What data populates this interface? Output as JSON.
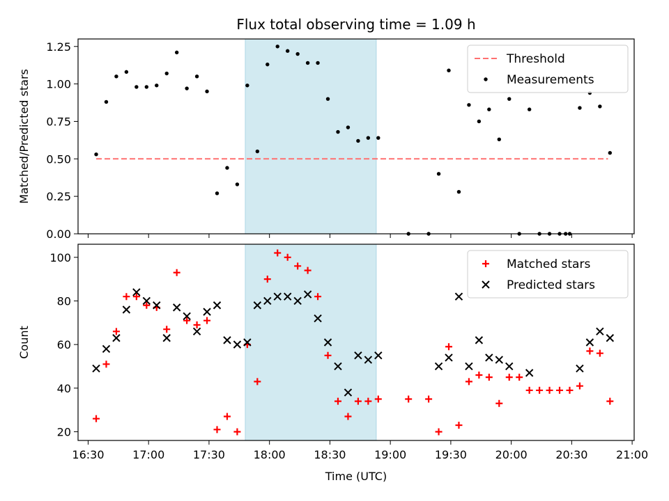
{
  "chart_data": {
    "title": "Flux total observing time = 1.09 h",
    "x_axis": {
      "label": "Time (UTC)",
      "range": [
        "16:25",
        "21:01"
      ],
      "ticks": [
        "16:30",
        "17:00",
        "17:30",
        "18:00",
        "18:30",
        "19:00",
        "19:30",
        "20:00",
        "20:30",
        "21:00"
      ]
    },
    "shaded_span": {
      "from": "17:48",
      "to": "18:53",
      "color": "#add8e6"
    },
    "panels": [
      {
        "type": "scatter",
        "ylabel": "Matched/Predicted stars",
        "ylim": [
          0,
          1.3
        ],
        "yticks": [
          "0.00",
          "0.25",
          "0.50",
          "0.75",
          "1.00",
          "1.25"
        ],
        "legend": "top-right",
        "series": [
          {
            "name": "Threshold",
            "style": "dashed-line",
            "color": "#ff7070",
            "points": [
              [
                "16:34",
                0.5
              ],
              [
                "20:48",
                0.5
              ]
            ]
          },
          {
            "name": "Measurements",
            "style": "dot",
            "color": "#000000",
            "points": [
              [
                "16:34",
                0.53
              ],
              [
                "16:39",
                0.88
              ],
              [
                "16:44",
                1.05
              ],
              [
                "16:49",
                1.08
              ],
              [
                "16:54",
                0.98
              ],
              [
                "16:59",
                0.98
              ],
              [
                "17:04",
                0.99
              ],
              [
                "17:09",
                1.07
              ],
              [
                "17:14",
                1.21
              ],
              [
                "17:19",
                0.97
              ],
              [
                "17:24",
                1.05
              ],
              [
                "17:29",
                0.95
              ],
              [
                "17:34",
                0.27
              ],
              [
                "17:39",
                0.44
              ],
              [
                "17:44",
                0.33
              ],
              [
                "17:49",
                0.99
              ],
              [
                "17:54",
                0.55
              ],
              [
                "17:59",
                1.13
              ],
              [
                "18:04",
                1.25
              ],
              [
                "18:09",
                1.22
              ],
              [
                "18:14",
                1.2
              ],
              [
                "18:19",
                1.14
              ],
              [
                "18:24",
                1.14
              ],
              [
                "18:29",
                0.9
              ],
              [
                "18:34",
                0.68
              ],
              [
                "18:39",
                0.71
              ],
              [
                "18:44",
                0.62
              ],
              [
                "18:49",
                0.64
              ],
              [
                "18:54",
                0.64
              ],
              [
                "19:09",
                0.0
              ],
              [
                "19:19",
                0.0
              ],
              [
                "19:24",
                0.4
              ],
              [
                "19:29",
                1.09
              ],
              [
                "19:34",
                0.28
              ],
              [
                "19:39",
                0.86
              ],
              [
                "19:44",
                0.75
              ],
              [
                "19:49",
                0.83
              ],
              [
                "19:54",
                0.63
              ],
              [
                "19:59",
                0.9
              ],
              [
                "20:04",
                0.0
              ],
              [
                "20:09",
                0.83
              ],
              [
                "20:14",
                0.0
              ],
              [
                "20:19",
                0.0
              ],
              [
                "20:24",
                0.0
              ],
              [
                "20:27",
                0.0
              ],
              [
                "20:29",
                0.0
              ],
              [
                "20:34",
                0.84
              ],
              [
                "20:39",
                0.94
              ],
              [
                "20:44",
                0.85
              ],
              [
                "20:49",
                0.54
              ]
            ]
          }
        ]
      },
      {
        "type": "scatter",
        "ylabel": "Count",
        "ylim": [
          16,
          106
        ],
        "yticks": [
          "20",
          "40",
          "60",
          "80",
          "100"
        ],
        "legend": "top-right",
        "series": [
          {
            "name": "Matched stars",
            "style": "plus",
            "color": "#ff0000",
            "points": [
              [
                "16:34",
                26
              ],
              [
                "16:39",
                51
              ],
              [
                "16:44",
                66
              ],
              [
                "16:49",
                82
              ],
              [
                "16:54",
                82
              ],
              [
                "16:59",
                78
              ],
              [
                "17:04",
                77
              ],
              [
                "17:09",
                67
              ],
              [
                "17:14",
                93
              ],
              [
                "17:19",
                71
              ],
              [
                "17:24",
                69
              ],
              [
                "17:29",
                71
              ],
              [
                "17:34",
                21
              ],
              [
                "17:39",
                27
              ],
              [
                "17:44",
                20
              ],
              [
                "17:49",
                60
              ],
              [
                "17:54",
                43
              ],
              [
                "17:59",
                90
              ],
              [
                "18:04",
                102
              ],
              [
                "18:09",
                100
              ],
              [
                "18:14",
                96
              ],
              [
                "18:19",
                94
              ],
              [
                "18:24",
                82
              ],
              [
                "18:29",
                55
              ],
              [
                "18:34",
                34
              ],
              [
                "18:39",
                27
              ],
              [
                "18:44",
                34
              ],
              [
                "18:49",
                34
              ],
              [
                "18:54",
                35
              ],
              [
                "19:09",
                35
              ],
              [
                "19:19",
                35
              ],
              [
                "19:24",
                20
              ],
              [
                "19:29",
                59
              ],
              [
                "19:34",
                23
              ],
              [
                "19:39",
                43
              ],
              [
                "19:44",
                46
              ],
              [
                "19:49",
                45
              ],
              [
                "19:54",
                33
              ],
              [
                "19:59",
                45
              ],
              [
                "20:04",
                45
              ],
              [
                "20:09",
                39
              ],
              [
                "20:14",
                39
              ],
              [
                "20:19",
                39
              ],
              [
                "20:24",
                39
              ],
              [
                "20:29",
                39
              ],
              [
                "20:34",
                41
              ],
              [
                "20:39",
                57
              ],
              [
                "20:44",
                56
              ],
              [
                "20:49",
                34
              ]
            ]
          },
          {
            "name": "Predicted stars",
            "style": "x",
            "color": "#000000",
            "points": [
              [
                "16:34",
                49
              ],
              [
                "16:39",
                58
              ],
              [
                "16:44",
                63
              ],
              [
                "16:49",
                76
              ],
              [
                "16:54",
                84
              ],
              [
                "16:59",
                80
              ],
              [
                "17:04",
                78
              ],
              [
                "17:09",
                63
              ],
              [
                "17:14",
                77
              ],
              [
                "17:19",
                73
              ],
              [
                "17:24",
                66
              ],
              [
                "17:29",
                75
              ],
              [
                "17:34",
                78
              ],
              [
                "17:39",
                62
              ],
              [
                "17:44",
                60
              ],
              [
                "17:49",
                61
              ],
              [
                "17:54",
                78
              ],
              [
                "17:59",
                80
              ],
              [
                "18:04",
                82
              ],
              [
                "18:09",
                82
              ],
              [
                "18:14",
                80
              ],
              [
                "18:19",
                83
              ],
              [
                "18:24",
                72
              ],
              [
                "18:29",
                61
              ],
              [
                "18:34",
                50
              ],
              [
                "18:39",
                38
              ],
              [
                "18:44",
                55
              ],
              [
                "18:49",
                53
              ],
              [
                "18:54",
                55
              ],
              [
                "19:24",
                50
              ],
              [
                "19:29",
                54
              ],
              [
                "19:34",
                82
              ],
              [
                "19:39",
                50
              ],
              [
                "19:44",
                62
              ],
              [
                "19:49",
                54
              ],
              [
                "19:54",
                53
              ],
              [
                "19:59",
                50
              ],
              [
                "20:09",
                47
              ],
              [
                "20:34",
                49
              ],
              [
                "20:39",
                61
              ],
              [
                "20:44",
                66
              ],
              [
                "20:49",
                63
              ]
            ]
          }
        ]
      }
    ]
  }
}
